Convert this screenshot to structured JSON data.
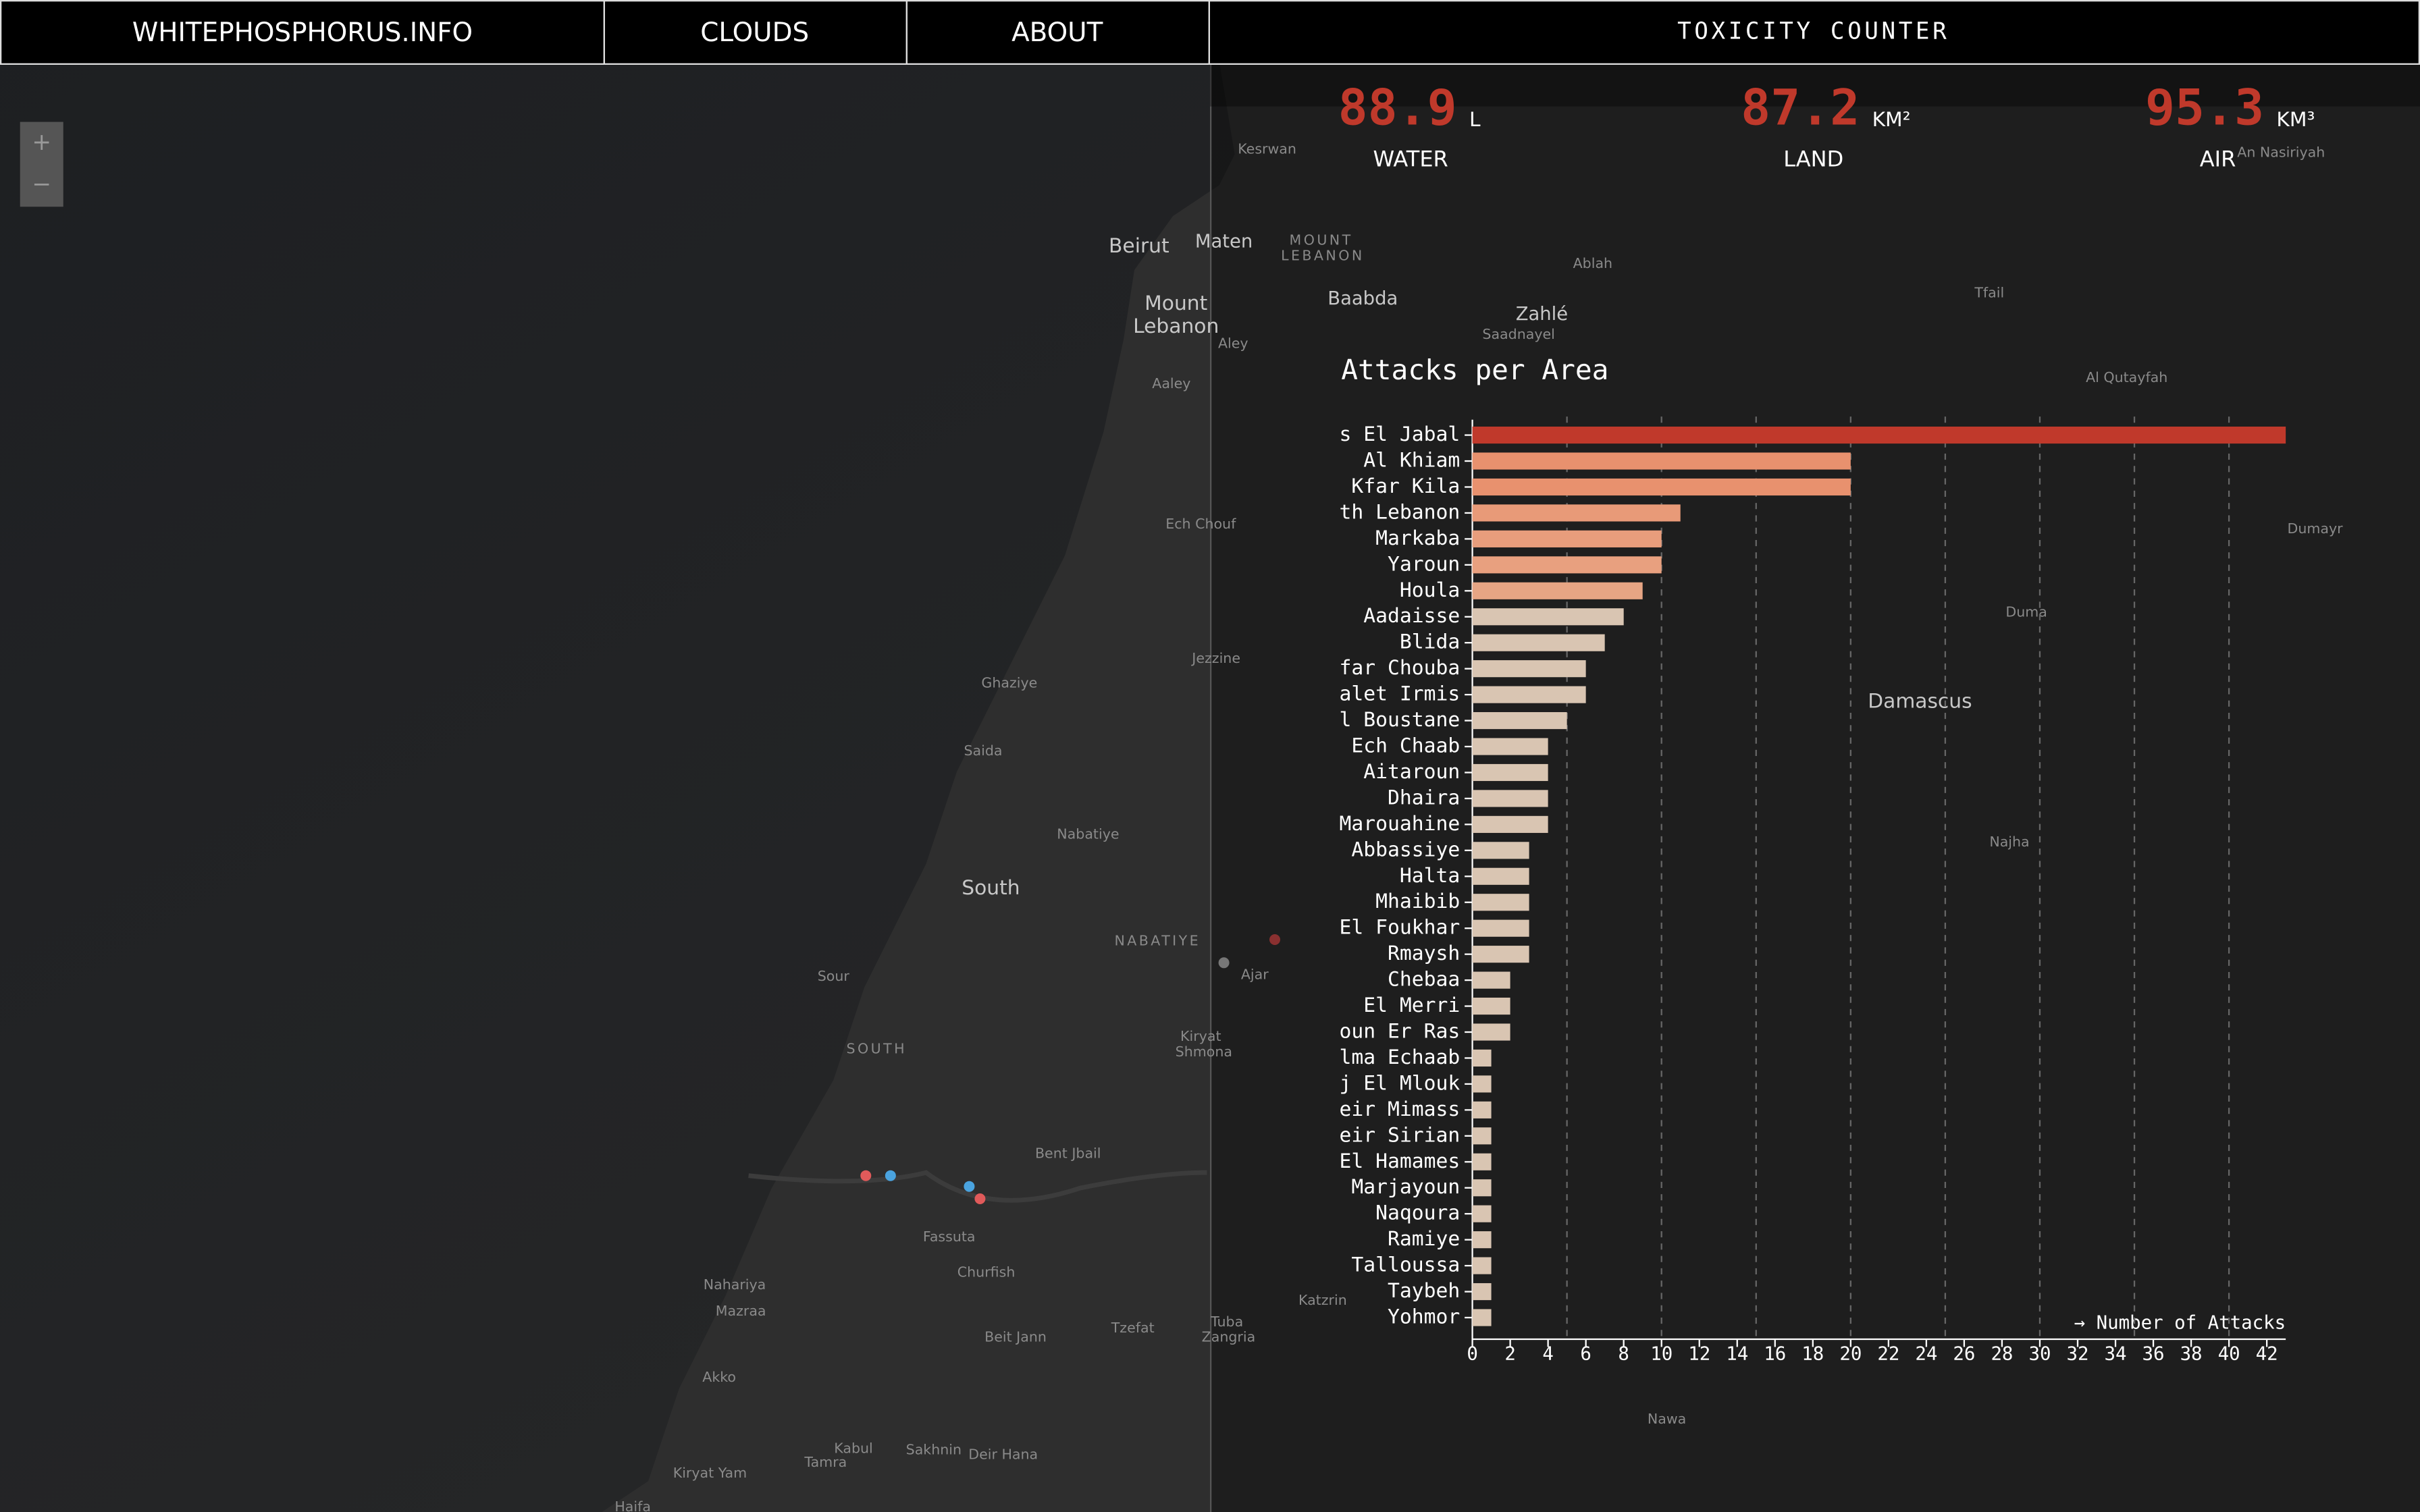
{
  "nav": {
    "brand": "WHITEPHOSPHORUS.INFO",
    "links": [
      "CLOUDS",
      "ABOUT"
    ],
    "counter_title": "TOXICITY COUNTER"
  },
  "counters": [
    {
      "value": 88.9,
      "unit": "L",
      "label": "WATER"
    },
    {
      "value": 87.2,
      "unit": "KM²",
      "label": "LAND"
    },
    {
      "value": 95.3,
      "unit": "KM³",
      "label": "AIR"
    }
  ],
  "zoom": [
    "+",
    "−"
  ],
  "map_labels": [
    "Kesrwan",
    "Beirut",
    "Maten",
    "MOUNT",
    "LEBANON",
    "Mount",
    "Lebanon",
    "Baabda",
    "Zahlé",
    "Saadnayel",
    "Ablah",
    "Aley",
    "Aaley",
    "Tfail",
    "Al Qutayfah",
    "An Nasiriyah",
    "Dumayr",
    "Duma",
    "Damascus",
    "Najha",
    "Ech Chouf",
    "Jezzine",
    "Ghaziye",
    "Saida",
    "Nabatiye",
    "South",
    "NABATIYE",
    "Sour",
    "SOUTH",
    "Kiryat",
    "Shmona",
    "Ajar",
    "Bent Jbail",
    "Fassuta",
    "Churfish",
    "Nahariya",
    "Mazraa",
    "Tzefat",
    "Beit Jann",
    "Akko",
    "Kabul",
    "Sakhnin",
    "Deir Hana",
    "Tamra",
    "Kiryat Yam",
    "Haifa",
    "Katzrin",
    "Nawa",
    "Tuba",
    "Zangria"
  ],
  "chart_data": {
    "type": "bar",
    "orientation": "horizontal",
    "title": "Attacks per Area",
    "x_label": "→ Number of Attacks",
    "categories": [
      "ss El Jabal",
      "Al Khiam",
      "Kfar Kila",
      "uth Lebanon",
      "Markaba",
      "Yaroun",
      "Houla",
      "Aadaisse",
      "Blida",
      "Kfar Chouba",
      "Talet Irmis",
      "El Boustane",
      "a Ech Chaab",
      "Aitaroun",
      "Dhaira",
      "Marouahine",
      "Abbassiye",
      "Halta",
      "Mhaibib",
      "El Foukhar",
      "Rmaysh",
      "Chebaa",
      "El Merri",
      "roun Er Ras",
      "Alma Echaab",
      "rj El Mlouk",
      "Deir Mimass",
      "Deir Sirian",
      "El Hamames",
      "Marjayoun",
      "Naqoura",
      "Ramiye",
      "Talloussa",
      "Taybeh",
      "Yohmor"
    ],
    "series": [
      {
        "values": [
          43,
          20,
          20,
          11,
          10,
          10,
          9,
          8,
          7,
          6,
          6,
          5,
          4,
          4,
          4,
          4,
          3,
          3,
          3,
          3,
          3,
          2,
          2,
          2,
          1,
          1,
          1,
          1,
          1,
          1,
          1,
          1,
          1,
          1,
          1
        ],
        "colors": [
          "#c0392b",
          "#e8916e",
          "#e8916e",
          "#e89a78",
          "#e89d7c",
          "#e8a07f",
          "#e6a584",
          "#d9c5b2",
          "#d9c5b2",
          "#d9c5b2",
          "#d9c5b2",
          "#d9c5b2",
          "#d9c5b2",
          "#d9c5b2",
          "#d9c5b2",
          "#d9c5b2",
          "#d9c5b2",
          "#d9c5b2",
          "#d9c5b2",
          "#d9c5b2",
          "#d9c5b2",
          "#d9c5b2",
          "#d9c5b2",
          "#d9c5b2",
          "#d9c5b2",
          "#d9c5b2",
          "#d9c5b2",
          "#d9c5b2",
          "#d9c5b2",
          "#d9c5b2",
          "#d9c5b2",
          "#d9c5b2",
          "#d9c5b2",
          "#d9c5b2",
          "#d9c5b2"
        ]
      }
    ],
    "xlim": [
      0,
      43
    ],
    "xticks": [
      0,
      2,
      4,
      6,
      8,
      10,
      12,
      14,
      16,
      18,
      20,
      22,
      24,
      26,
      28,
      30,
      32,
      34,
      36,
      38,
      40,
      42
    ],
    "xgrid": [
      5,
      10,
      15,
      20,
      25,
      30,
      35,
      40
    ],
    "grid": true
  }
}
